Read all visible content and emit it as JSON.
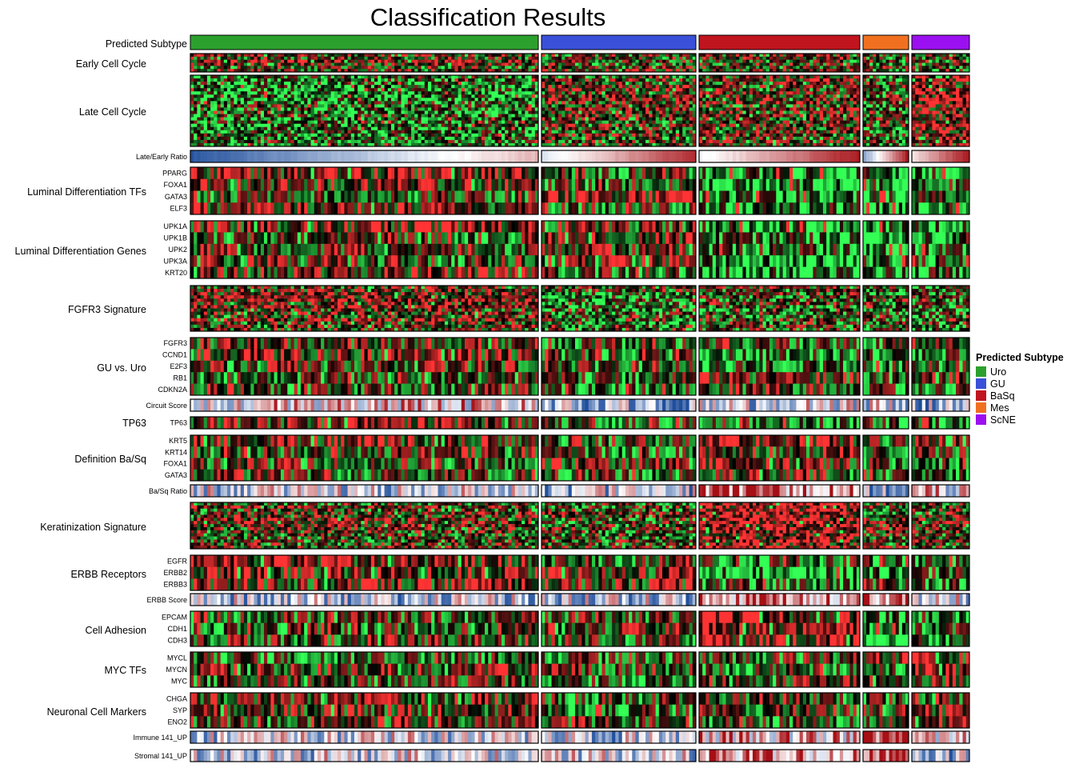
{
  "chart_data": {
    "type": "heatmap",
    "title": "Classification Results",
    "legend": {
      "title": "Predicted Subtype",
      "placement": "right",
      "entries": [
        {
          "label": "Uro",
          "color": "#2ca02c"
        },
        {
          "label": "GU",
          "color": "#3a50d9"
        },
        {
          "label": "BaSq",
          "color": "#c0141f"
        },
        {
          "label": "Mes",
          "color": "#f07020"
        },
        {
          "label": "ScNE",
          "color": "#9b10f0"
        }
      ]
    },
    "subtype_annotation_label": "Predicted Subtype",
    "subtype_sample_fraction": {
      "Uro": 0.446,
      "GU": 0.2,
      "BaSq": 0.206,
      "Mes": 0.06,
      "ScNE": 0.075
    },
    "heatmap_colors": {
      "low": "#33ff55",
      "mid": "#000000",
      "high": "#ff3333"
    },
    "score_colors": {
      "low": "#1f4e9c",
      "mid": "#ffffff",
      "high": "#a50f15"
    },
    "rows": [
      {
        "group": "Early Cell Cycle",
        "kind": "heatmap",
        "genes": []
      },
      {
        "group": "Late Cell Cycle",
        "kind": "heatmap",
        "genes": []
      },
      {
        "score": "Late/Early Ratio",
        "kind": "score"
      },
      {
        "group": "Luminal Differentiation TFs",
        "kind": "heatmap",
        "genes": [
          "PPARG",
          "FOXA1",
          "GATA3",
          "ELF3"
        ]
      },
      {
        "group": "Luminal Differentiation Genes",
        "kind": "heatmap",
        "genes": [
          "UPK1A",
          "UPK1B",
          "UPK2",
          "UPK3A",
          "KRT20"
        ]
      },
      {
        "group": "FGFR3 Signature",
        "kind": "heatmap",
        "genes": []
      },
      {
        "group": "GU vs. Uro",
        "kind": "heatmap",
        "genes": [
          "FGFR3",
          "CCND1",
          "E2F3",
          "RB1",
          "CDKN2A"
        ]
      },
      {
        "score": "Circuit Score",
        "kind": "score"
      },
      {
        "group": "TP63",
        "kind": "heatmap",
        "genes": [
          "TP63"
        ]
      },
      {
        "group": "Definition Ba/Sq",
        "kind": "heatmap",
        "genes": [
          "KRT5",
          "KRT14",
          "FOXA1",
          "GATA3"
        ]
      },
      {
        "score": "Ba/Sq Ratio",
        "kind": "score"
      },
      {
        "group": "Keratinization Signature",
        "kind": "heatmap",
        "genes": []
      },
      {
        "group": "ERBB Receptors",
        "kind": "heatmap",
        "genes": [
          "EGFR",
          "ERBB2",
          "ERBB3"
        ]
      },
      {
        "score": "ERBB Score",
        "kind": "score"
      },
      {
        "group": "Cell Adhesion",
        "kind": "heatmap",
        "genes": [
          "EPCAM",
          "CDH1",
          "CDH3"
        ]
      },
      {
        "group": "MYC TFs",
        "kind": "heatmap",
        "genes": [
          "MYCL",
          "MYCN",
          "MYC"
        ]
      },
      {
        "group": "Neuronal Cell Markers",
        "kind": "heatmap",
        "genes": [
          "CHGA",
          "SYP",
          "ENO2"
        ]
      },
      {
        "score": "Immune 141_UP",
        "kind": "score"
      },
      {
        "score": "Stromal 141_UP",
        "kind": "score"
      }
    ],
    "grid": false
  }
}
